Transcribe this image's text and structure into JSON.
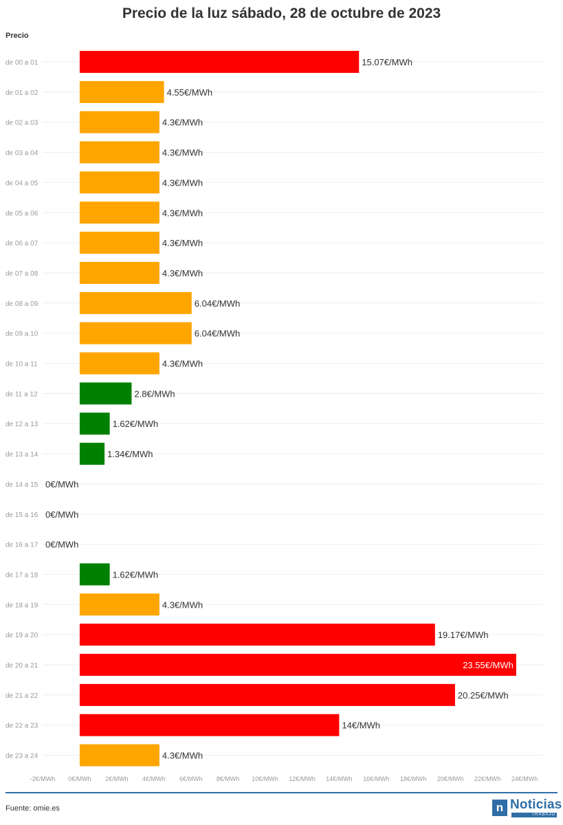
{
  "title": "Precio de la luz sábado, 28 de octubre de 2023",
  "footer": {
    "source": "Fuente: omie.es",
    "logo_text": "Noticias",
    "logo_sub": "TRABAJO",
    "logo_mark": "n"
  },
  "colors": {
    "high": "#ff0000",
    "mid": "#ffa500",
    "low": "#008000",
    "rule": "#2f6ea6"
  },
  "chart_data": {
    "type": "bar",
    "orientation": "horizontal",
    "title": "Precio de la luz sábado, 28 de octubre de 2023",
    "series": [
      {
        "name": "Precio",
        "values": [
          15.07,
          4.55,
          4.3,
          4.3,
          4.3,
          4.3,
          4.3,
          4.3,
          6.04,
          6.04,
          4.3,
          2.8,
          1.62,
          1.34,
          0,
          0,
          0,
          1.62,
          4.3,
          19.17,
          23.55,
          20.25,
          14,
          4.3
        ]
      }
    ],
    "categories": [
      "de 00 a 01",
      "de 01 a 02",
      "de 02 a 03",
      "de 03 a 04",
      "de 04 a 05",
      "de 05 a 06",
      "de 06 a 07",
      "de 07 a 08",
      "de 08 a 09",
      "de 09 a 10",
      "de 10 a 11",
      "de 11 a 12",
      "de 12 a 13",
      "de 13 a 14",
      "de 14 a 15",
      "de 15 a 16",
      "de 16 a 17",
      "de 17 a 18",
      "de 18 a 19",
      "de 19 a 20",
      "de 20 a 21",
      "de 21 a 22",
      "de 22 a 23",
      "de 23 a 24"
    ],
    "value_labels": [
      "15.07€/MWh",
      "4.55€/MWh",
      "4.3€/MWh",
      "4.3€/MWh",
      "4.3€/MWh",
      "4.3€/MWh",
      "4.3€/MWh",
      "4.3€/MWh",
      "6.04€/MWh",
      "6.04€/MWh",
      "4.3€/MWh",
      "2.8€/MWh",
      "1.62€/MWh",
      "1.34€/MWh",
      "0€/MWh",
      "0€/MWh",
      "0€/MWh",
      "1.62€/MWh",
      "4.3€/MWh",
      "19.17€/MWh",
      "23.55€/MWh",
      "20.25€/MWh",
      "14€/MWh",
      "4.3€/MWh"
    ],
    "bar_colors": [
      "high",
      "mid",
      "mid",
      "mid",
      "mid",
      "mid",
      "mid",
      "mid",
      "mid",
      "mid",
      "mid",
      "low",
      "low",
      "low",
      "low",
      "low",
      "low",
      "low",
      "mid",
      "high",
      "high",
      "high",
      "high",
      "mid"
    ],
    "x_ticks": [
      -2,
      0,
      2,
      4,
      6,
      8,
      10,
      12,
      14,
      16,
      18,
      20,
      22,
      24
    ],
    "x_tick_labels": [
      "-2€/MWh",
      "0€/MWh",
      "2€/MWh",
      "4€/MWh",
      "6€/MWh",
      "8€/MWh",
      "10€/MWh",
      "12€/MWh",
      "14€/MWh",
      "16€/MWh",
      "18€/MWh",
      "20€/MWh",
      "22€/MWh",
      "24€/MWh"
    ],
    "xlim": [
      -2,
      25
    ],
    "xlabel": "",
    "ylabel": "",
    "grid": true
  }
}
